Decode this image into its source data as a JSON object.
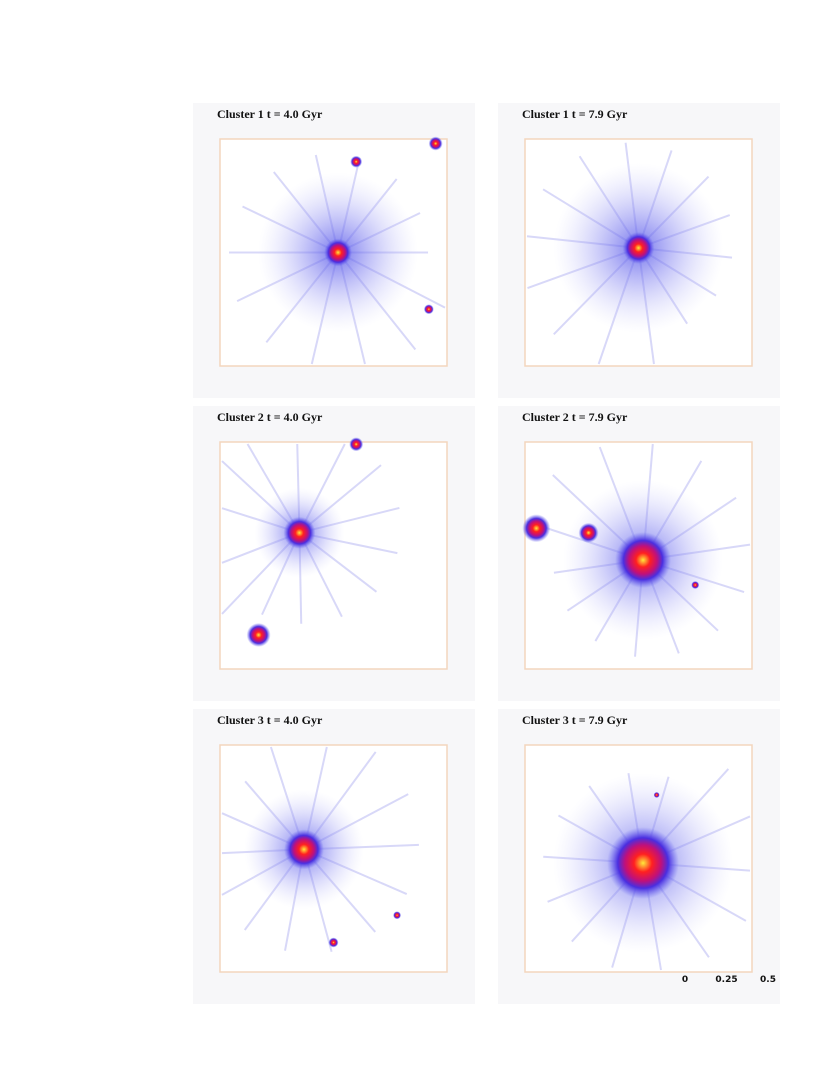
{
  "panels": [
    {
      "title": "Cluster 1 t = 4.0 Gyr"
    },
    {
      "title": "Cluster 1 t = 7.9 Gyr"
    },
    {
      "title": "Cluster 2 t = 4.0 Gyr"
    },
    {
      "title": "Cluster 2 t = 7.9 Gyr"
    },
    {
      "title": "Cluster 3 t = 4.0 Gyr"
    },
    {
      "title": "Cluster 3 t = 7.9 Gyr"
    }
  ],
  "colorbar": {
    "ticks": [
      0,
      0.25,
      0.5
    ]
  }
}
